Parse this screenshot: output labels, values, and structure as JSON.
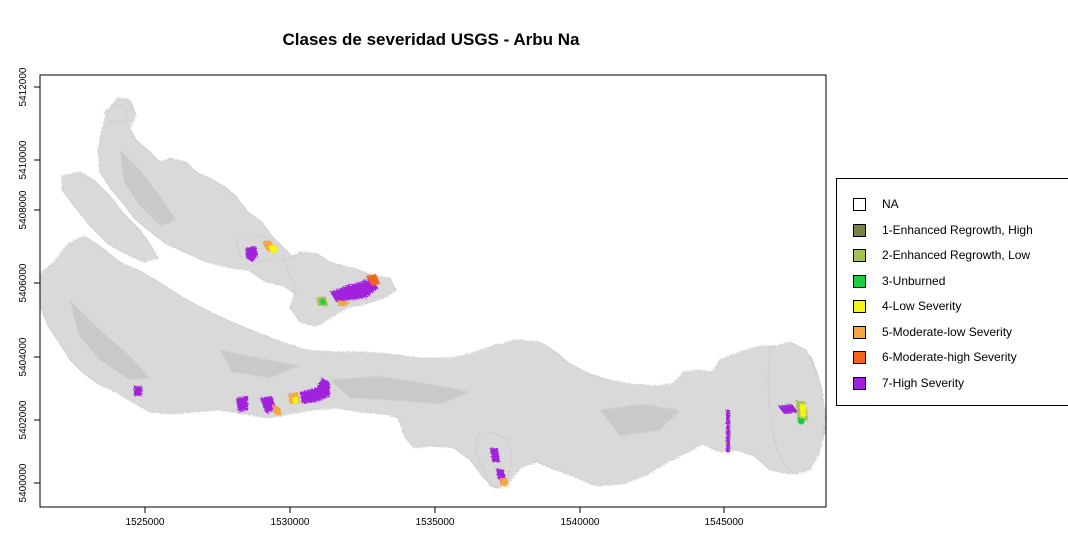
{
  "title": "Clases de severidad USGS - Arbu Na",
  "x_axis": {
    "ticks": [
      "1525000",
      "1530000",
      "1535000",
      "1540000",
      "1545000"
    ]
  },
  "y_axis": {
    "ticks": [
      "5400000",
      "5402000",
      "5404000",
      "5406000",
      "5408000",
      "5410000",
      "5412000"
    ]
  },
  "legend": {
    "items": [
      {
        "label": "NA",
        "color": "#ffffff"
      },
      {
        "label": "1-Enhanced Regrowth, High",
        "color": "#758544"
      },
      {
        "label": "2-Enhanced Regrowth, Low",
        "color": "#a7c055"
      },
      {
        "label": "3-Unburned",
        "color": "#1fcb40"
      },
      {
        "label": "4-Low Severity",
        "color": "#f5f518"
      },
      {
        "label": "5-Moderate-low Severity",
        "color": "#f5a640"
      },
      {
        "label": "6-Moderate-high Severity",
        "color": "#f4641c"
      },
      {
        "label": "7-High Severity",
        "color": "#a020dd"
      }
    ]
  }
}
